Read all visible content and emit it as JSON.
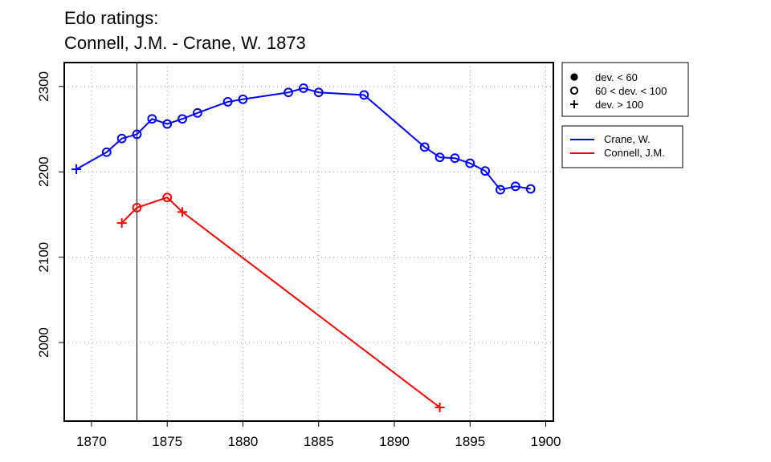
{
  "chart_data": {
    "type": "line",
    "title": "Edo ratings:",
    "subtitle": "Connell, J.M. - Crane, W. 1873",
    "xlabel": "",
    "ylabel": "",
    "xlim": [
      1868.2,
      1900.5
    ],
    "ylim": [
      1908,
      2328
    ],
    "x_ticks": [
      1870,
      1875,
      1880,
      1885,
      1890,
      1895,
      1900
    ],
    "y_ticks": [
      2000,
      2100,
      2200,
      2300
    ],
    "grid": true,
    "marker_line_x": 1873,
    "series": [
      {
        "name": "Crane, W.",
        "color": "#0000ff",
        "points": [
          {
            "x": 1869,
            "y": 2203,
            "marker": "plus"
          },
          {
            "x": 1871,
            "y": 2223,
            "marker": "circle-open"
          },
          {
            "x": 1872,
            "y": 2239,
            "marker": "circle-open"
          },
          {
            "x": 1873,
            "y": 2244,
            "marker": "circle-open"
          },
          {
            "x": 1874,
            "y": 2262,
            "marker": "circle-open"
          },
          {
            "x": 1875,
            "y": 2256,
            "marker": "circle-open"
          },
          {
            "x": 1876,
            "y": 2262,
            "marker": "circle-open"
          },
          {
            "x": 1877,
            "y": 2269,
            "marker": "circle-open"
          },
          {
            "x": 1879,
            "y": 2282,
            "marker": "circle-open"
          },
          {
            "x": 1880,
            "y": 2285,
            "marker": "circle-open"
          },
          {
            "x": 1883,
            "y": 2293,
            "marker": "circle-open"
          },
          {
            "x": 1884,
            "y": 2298,
            "marker": "circle-open"
          },
          {
            "x": 1885,
            "y": 2293,
            "marker": "circle-open"
          },
          {
            "x": 1888,
            "y": 2290,
            "marker": "circle-open"
          },
          {
            "x": 1892,
            "y": 2229,
            "marker": "circle-open"
          },
          {
            "x": 1893,
            "y": 2217,
            "marker": "circle-open"
          },
          {
            "x": 1894,
            "y": 2216,
            "marker": "circle-open"
          },
          {
            "x": 1895,
            "y": 2210,
            "marker": "circle-open"
          },
          {
            "x": 1896,
            "y": 2201,
            "marker": "circle-open"
          },
          {
            "x": 1897,
            "y": 2179,
            "marker": "circle-open"
          },
          {
            "x": 1898,
            "y": 2183,
            "marker": "circle-open"
          },
          {
            "x": 1899,
            "y": 2180,
            "marker": "circle-open"
          }
        ]
      },
      {
        "name": "Connell, J.M.",
        "color": "#ff0000",
        "points": [
          {
            "x": 1872,
            "y": 2140,
            "marker": "plus"
          },
          {
            "x": 1873,
            "y": 2158,
            "marker": "circle-open"
          },
          {
            "x": 1875,
            "y": 2170,
            "marker": "circle-open"
          },
          {
            "x": 1876,
            "y": 2153,
            "marker": "plus"
          },
          {
            "x": 1893,
            "y": 1924,
            "marker": "plus"
          }
        ]
      }
    ],
    "deviation_legend": [
      {
        "label": "dev. < 60",
        "marker": "circle-filled"
      },
      {
        "label": "60 < dev. < 100",
        "marker": "circle-open"
      },
      {
        "label": "dev. > 100",
        "marker": "plus"
      }
    ],
    "legend_position": "right"
  }
}
